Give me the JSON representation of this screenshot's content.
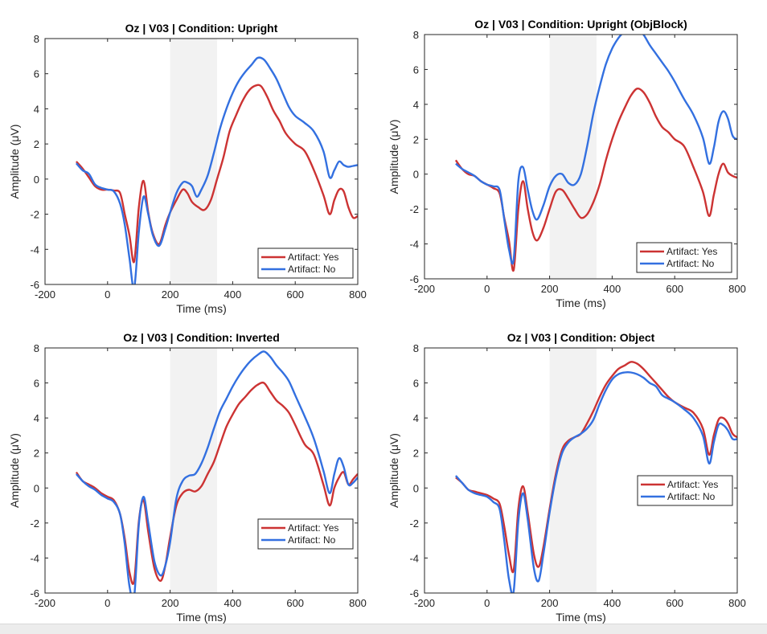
{
  "colors": {
    "yes": "#cc3333",
    "no": "#3370e0",
    "shade": "#f2f2f2"
  },
  "chart_data": [
    {
      "type": "line",
      "title": "Oz | V03 | Condition: Upright",
      "xlabel": "Time (ms)",
      "ylabel": "Amplitude (μV)",
      "xlim": [
        -200,
        800
      ],
      "ylim": [
        -6,
        8
      ],
      "xticks": [
        "-200",
        "0",
        "200",
        "400",
        "600",
        "800"
      ],
      "yticks": [
        "-6",
        "-4",
        "-2",
        "0",
        "2",
        "4",
        "6",
        "8"
      ],
      "shaded_region": [
        200,
        350
      ],
      "legend_position": "bottom-right",
      "series": [
        {
          "name": "Artifact: Yes",
          "color": "#cc3333",
          "x": [
            -100,
            -80,
            -60,
            -40,
            -20,
            0,
            20,
            40,
            55,
            70,
            85,
            100,
            115,
            130,
            145,
            165,
            185,
            200,
            220,
            240,
            255,
            270,
            290,
            310,
            330,
            350,
            370,
            390,
            410,
            430,
            450,
            470,
            490,
            510,
            530,
            550,
            570,
            600,
            630,
            660,
            690,
            710,
            725,
            740,
            755,
            770,
            785,
            800
          ],
          "y": [
            1.0,
            0.6,
            0.1,
            -0.4,
            -0.6,
            -0.6,
            -0.65,
            -0.8,
            -2.0,
            -3.2,
            -4.7,
            -1.6,
            -0.1,
            -1.9,
            -3.1,
            -3.7,
            -2.6,
            -1.9,
            -1.2,
            -0.6,
            -0.8,
            -1.3,
            -1.6,
            -1.75,
            -1.2,
            0.0,
            1.2,
            2.7,
            3.6,
            4.4,
            5.0,
            5.3,
            5.3,
            4.7,
            3.9,
            3.3,
            2.6,
            2.0,
            1.6,
            0.5,
            -0.9,
            -2.0,
            -1.2,
            -0.6,
            -0.7,
            -1.6,
            -2.2,
            -2.1
          ]
        },
        {
          "name": "Artifact: No",
          "color": "#3370e0",
          "x": [
            -100,
            -80,
            -60,
            -40,
            -20,
            0,
            20,
            40,
            55,
            70,
            85,
            100,
            115,
            130,
            145,
            165,
            185,
            200,
            220,
            240,
            255,
            270,
            285,
            300,
            320,
            340,
            360,
            380,
            400,
            420,
            440,
            460,
            480,
            500,
            520,
            540,
            560,
            580,
            600,
            630,
            660,
            690,
            710,
            725,
            740,
            755,
            770,
            785,
            800
          ],
          "y": [
            0.9,
            0.5,
            0.3,
            -0.3,
            -0.5,
            -0.6,
            -0.7,
            -1.4,
            -2.6,
            -4.5,
            -6.2,
            -3.0,
            -1.0,
            -2.0,
            -3.2,
            -3.8,
            -2.8,
            -1.9,
            -0.8,
            -0.2,
            -0.2,
            -0.4,
            -1.0,
            -0.6,
            0.2,
            1.5,
            2.9,
            4.0,
            4.9,
            5.6,
            6.1,
            6.5,
            6.9,
            6.8,
            6.3,
            5.7,
            4.9,
            4.1,
            3.6,
            3.2,
            2.7,
            1.6,
            0.1,
            0.5,
            1.0,
            0.8,
            0.7,
            0.75,
            0.8
          ]
        }
      ]
    },
    {
      "type": "line",
      "title": "Oz | V03 | Condition: Upright (ObjBlock)",
      "xlabel": "Time (ms)",
      "ylabel": "Amplitude (μV)",
      "xlim": [
        -200,
        800
      ],
      "ylim": [
        -6,
        8
      ],
      "xticks": [
        "-200",
        "0",
        "200",
        "400",
        "600",
        "800"
      ],
      "yticks": [
        "-6",
        "-4",
        "-2",
        "0",
        "2",
        "4",
        "6",
        "8"
      ],
      "shaded_region": [
        200,
        350
      ],
      "legend_position": "bottom-right",
      "series": [
        {
          "name": "Artifact: Yes",
          "color": "#cc3333",
          "x": [
            -100,
            -80,
            -60,
            -40,
            -20,
            0,
            20,
            40,
            55,
            70,
            85,
            100,
            115,
            130,
            145,
            160,
            180,
            200,
            220,
            240,
            260,
            280,
            300,
            320,
            340,
            360,
            380,
            400,
            420,
            440,
            460,
            480,
            500,
            520,
            540,
            560,
            580,
            600,
            630,
            660,
            690,
            710,
            725,
            740,
            755,
            770,
            785,
            800
          ],
          "y": [
            0.8,
            0.3,
            0.0,
            -0.1,
            -0.4,
            -0.6,
            -0.8,
            -1.1,
            -2.5,
            -3.8,
            -5.5,
            -2.0,
            -0.4,
            -2.0,
            -3.3,
            -3.8,
            -3.1,
            -2.0,
            -1.0,
            -0.9,
            -1.4,
            -2.0,
            -2.5,
            -2.3,
            -1.6,
            -0.6,
            0.8,
            2.0,
            3.0,
            3.8,
            4.5,
            4.9,
            4.7,
            4.1,
            3.3,
            2.7,
            2.4,
            2.0,
            1.6,
            0.4,
            -1.0,
            -2.4,
            -1.2,
            0.0,
            0.6,
            0.1,
            -0.1,
            -0.2
          ]
        },
        {
          "name": "Artifact: No",
          "color": "#3370e0",
          "x": [
            -100,
            -80,
            -60,
            -40,
            -20,
            0,
            20,
            40,
            55,
            70,
            85,
            100,
            115,
            130,
            145,
            160,
            180,
            200,
            220,
            240,
            260,
            280,
            300,
            320,
            340,
            360,
            380,
            400,
            420,
            440,
            460,
            480,
            500,
            520,
            540,
            560,
            580,
            600,
            630,
            660,
            690,
            710,
            725,
            740,
            755,
            770,
            785,
            800
          ],
          "y": [
            0.6,
            0.3,
            0.1,
            -0.1,
            -0.4,
            -0.6,
            -0.7,
            -0.9,
            -2.6,
            -4.3,
            -4.9,
            -0.4,
            0.4,
            -0.9,
            -2.1,
            -2.6,
            -1.8,
            -0.7,
            -0.1,
            0.0,
            -0.5,
            -0.6,
            0.0,
            1.6,
            3.5,
            5.0,
            6.3,
            7.2,
            7.8,
            8.2,
            8.5,
            8.3,
            8.0,
            7.4,
            6.9,
            6.4,
            5.9,
            5.3,
            4.3,
            3.4,
            2.1,
            0.6,
            1.5,
            3.0,
            3.6,
            3.2,
            2.2,
            2.0
          ]
        }
      ]
    },
    {
      "type": "line",
      "title": "Oz | V03 | Condition: Inverted",
      "xlabel": "Time (ms)",
      "ylabel": "Amplitude (μV)",
      "xlim": [
        -200,
        800
      ],
      "ylim": [
        -6,
        8
      ],
      "xticks": [
        "-200",
        "0",
        "200",
        "400",
        "600",
        "800"
      ],
      "yticks": [
        "-6",
        "-4",
        "-2",
        "0",
        "2",
        "4",
        "6",
        "8"
      ],
      "shaded_region": [
        200,
        350
      ],
      "legend_position": "bottom-right",
      "series": [
        {
          "name": "Artifact: Yes",
          "color": "#cc3333",
          "x": [
            -100,
            -80,
            -60,
            -40,
            -20,
            0,
            20,
            40,
            55,
            70,
            85,
            100,
            115,
            130,
            150,
            170,
            185,
            200,
            220,
            240,
            260,
            280,
            300,
            320,
            340,
            360,
            380,
            400,
            420,
            440,
            460,
            480,
            500,
            520,
            540,
            560,
            580,
            600,
            630,
            660,
            690,
            710,
            725,
            740,
            755,
            770,
            785,
            800
          ],
          "y": [
            0.9,
            0.4,
            0.2,
            0.0,
            -0.3,
            -0.5,
            -0.7,
            -1.5,
            -2.9,
            -4.8,
            -5.3,
            -1.9,
            -0.7,
            -2.5,
            -4.6,
            -5.3,
            -4.4,
            -2.8,
            -1.0,
            -0.3,
            -0.1,
            -0.2,
            0.1,
            0.8,
            1.5,
            2.5,
            3.5,
            4.2,
            4.8,
            5.2,
            5.6,
            5.9,
            6.0,
            5.5,
            5.0,
            4.7,
            4.3,
            3.6,
            2.5,
            1.9,
            0.2,
            -1.0,
            0.0,
            0.6,
            0.9,
            0.2,
            0.5,
            0.8
          ]
        },
        {
          "name": "Artifact: No",
          "color": "#3370e0",
          "x": [
            -100,
            -80,
            -60,
            -40,
            -20,
            0,
            20,
            40,
            55,
            70,
            85,
            100,
            115,
            130,
            150,
            170,
            185,
            200,
            220,
            240,
            260,
            280,
            300,
            320,
            340,
            360,
            380,
            400,
            420,
            440,
            460,
            480,
            500,
            520,
            540,
            560,
            580,
            600,
            630,
            660,
            690,
            710,
            725,
            740,
            755,
            770,
            785,
            800
          ],
          "y": [
            0.8,
            0.4,
            0.1,
            -0.1,
            -0.4,
            -0.6,
            -0.8,
            -1.5,
            -3.2,
            -5.6,
            -6.2,
            -2.1,
            -0.5,
            -2.0,
            -4.2,
            -5.0,
            -4.4,
            -3.1,
            -0.6,
            0.4,
            0.7,
            0.8,
            1.4,
            2.3,
            3.4,
            4.4,
            5.1,
            5.8,
            6.4,
            6.9,
            7.3,
            7.6,
            7.8,
            7.5,
            7.0,
            6.6,
            6.1,
            5.3,
            4.1,
            2.8,
            1.0,
            -0.3,
            0.8,
            1.7,
            1.2,
            0.2,
            0.3,
            0.6
          ]
        }
      ]
    },
    {
      "type": "line",
      "title": "Oz | V03 | Condition: Object",
      "xlabel": "Time (ms)",
      "ylabel": "Amplitude (μV)",
      "xlim": [
        -200,
        800
      ],
      "ylim": [
        -6,
        8
      ],
      "xticks": [
        "-200",
        "0",
        "200",
        "400",
        "600",
        "800"
      ],
      "yticks": [
        "-6",
        "-4",
        "-2",
        "0",
        "2",
        "4",
        "6",
        "8"
      ],
      "shaded_region": [
        200,
        350
      ],
      "legend_position": "middle-right",
      "series": [
        {
          "name": "Artifact: Yes",
          "color": "#cc3333",
          "x": [
            -100,
            -80,
            -60,
            -40,
            -20,
            0,
            20,
            40,
            55,
            70,
            85,
            100,
            115,
            130,
            150,
            165,
            180,
            200,
            220,
            240,
            260,
            280,
            300,
            320,
            340,
            360,
            380,
            400,
            420,
            440,
            460,
            480,
            500,
            520,
            540,
            560,
            580,
            600,
            630,
            660,
            690,
            710,
            725,
            740,
            755,
            770,
            785,
            800
          ],
          "y": [
            0.6,
            0.3,
            -0.1,
            -0.2,
            -0.3,
            -0.4,
            -0.6,
            -0.9,
            -2.2,
            -3.8,
            -4.7,
            -1.2,
            0.1,
            -1.4,
            -3.8,
            -4.5,
            -3.4,
            -1.2,
            0.8,
            2.2,
            2.7,
            2.9,
            3.1,
            3.7,
            4.4,
            5.2,
            5.9,
            6.4,
            6.8,
            7.0,
            7.2,
            7.1,
            6.8,
            6.4,
            6.0,
            5.6,
            5.2,
            4.9,
            4.6,
            4.3,
            3.4,
            1.9,
            3.0,
            3.9,
            4.0,
            3.7,
            3.1,
            2.9
          ]
        },
        {
          "name": "Artifact: No",
          "color": "#3370e0",
          "x": [
            -100,
            -80,
            -60,
            -40,
            -20,
            0,
            20,
            40,
            55,
            70,
            85,
            100,
            115,
            130,
            150,
            165,
            180,
            200,
            220,
            240,
            260,
            280,
            300,
            320,
            340,
            360,
            380,
            400,
            420,
            440,
            460,
            480,
            500,
            520,
            540,
            560,
            580,
            600,
            630,
            660,
            690,
            710,
            725,
            740,
            755,
            770,
            785,
            800
          ],
          "y": [
            0.7,
            0.3,
            -0.1,
            -0.3,
            -0.4,
            -0.5,
            -0.8,
            -1.2,
            -3.0,
            -5.2,
            -5.9,
            -1.9,
            -0.3,
            -1.8,
            -4.6,
            -5.3,
            -3.8,
            -1.4,
            0.6,
            2.0,
            2.6,
            2.9,
            3.1,
            3.4,
            3.9,
            4.8,
            5.6,
            6.2,
            6.5,
            6.6,
            6.6,
            6.5,
            6.3,
            6.0,
            5.8,
            5.3,
            5.1,
            4.9,
            4.5,
            4.0,
            3.0,
            1.4,
            2.6,
            3.6,
            3.6,
            3.3,
            2.8,
            2.8
          ]
        }
      ]
    }
  ]
}
